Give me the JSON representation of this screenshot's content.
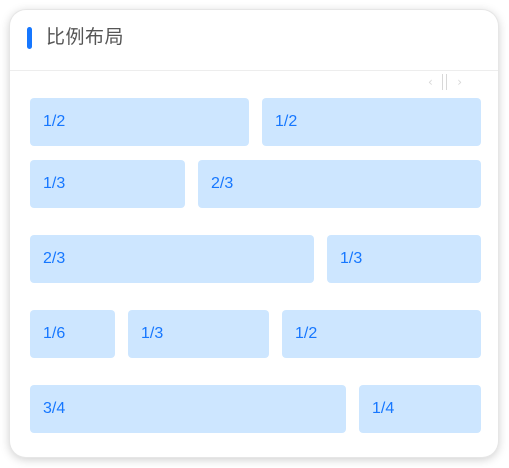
{
  "panel": {
    "title": "比例布局"
  },
  "colors": {
    "accent": "#1677ff",
    "cell_background": "#cde6ff",
    "cell_text": "#1677ff",
    "title_text": "#555555"
  },
  "resize_handle": {
    "left_arrow": "‹",
    "right_arrow": "›"
  },
  "rows": [
    {
      "cells": [
        {
          "label": "1/2"
        },
        {
          "label": "1/2"
        }
      ]
    },
    {
      "cells": [
        {
          "label": "1/3"
        },
        {
          "label": "2/3"
        }
      ]
    },
    {
      "cells": [
        {
          "label": "2/3"
        },
        {
          "label": "1/3"
        }
      ]
    },
    {
      "cells": [
        {
          "label": "1/6"
        },
        {
          "label": "1/3"
        },
        {
          "label": "1/2"
        }
      ]
    },
    {
      "cells": [
        {
          "label": "3/4"
        },
        {
          "label": "1/4"
        }
      ]
    }
  ]
}
